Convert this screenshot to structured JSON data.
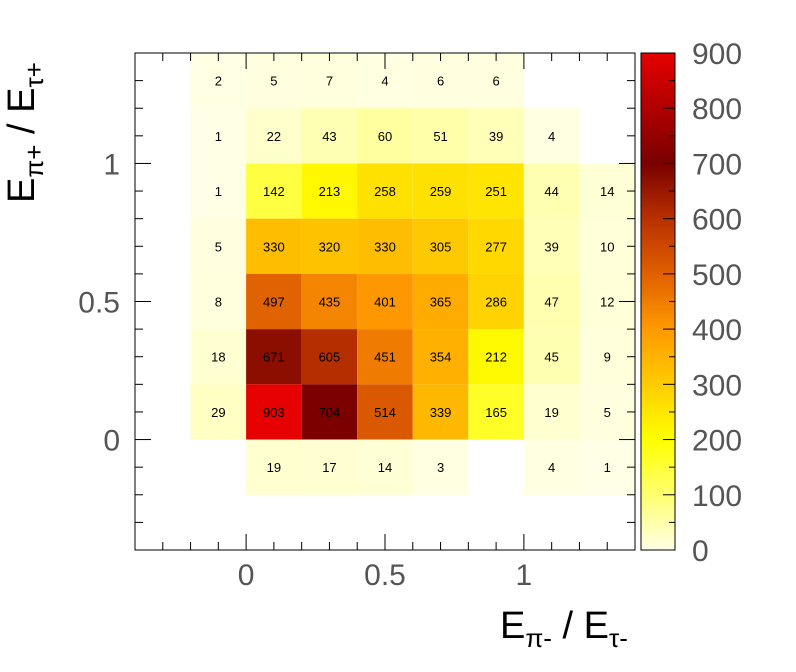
{
  "chart_data": {
    "type": "heatmap",
    "x_edges": [
      -0.2,
      0,
      0.2,
      0.4,
      0.6,
      0.8,
      1.0,
      1.2,
      1.4
    ],
    "y_edges": [
      -0.2,
      0,
      0.2,
      0.4,
      0.6,
      0.8,
      1.0,
      1.2,
      1.4
    ],
    "cells": [
      {
        "x": -0.1,
        "y": 1.3,
        "value": 2
      },
      {
        "x": 0.1,
        "y": 1.3,
        "value": 5
      },
      {
        "x": 0.3,
        "y": 1.3,
        "value": 7
      },
      {
        "x": 0.5,
        "y": 1.3,
        "value": 4
      },
      {
        "x": 0.7,
        "y": 1.3,
        "value": 6
      },
      {
        "x": 0.9,
        "y": 1.3,
        "value": 6
      },
      {
        "x": -0.1,
        "y": 1.1,
        "value": 1
      },
      {
        "x": 0.1,
        "y": 1.1,
        "value": 22
      },
      {
        "x": 0.3,
        "y": 1.1,
        "value": 43
      },
      {
        "x": 0.5,
        "y": 1.1,
        "value": 60
      },
      {
        "x": 0.7,
        "y": 1.1,
        "value": 51
      },
      {
        "x": 0.9,
        "y": 1.1,
        "value": 39
      },
      {
        "x": 1.1,
        "y": 1.1,
        "value": 4
      },
      {
        "x": -0.1,
        "y": 0.9,
        "value": 1
      },
      {
        "x": 0.1,
        "y": 0.9,
        "value": 142
      },
      {
        "x": 0.3,
        "y": 0.9,
        "value": 213
      },
      {
        "x": 0.5,
        "y": 0.9,
        "value": 258
      },
      {
        "x": 0.7,
        "y": 0.9,
        "value": 259
      },
      {
        "x": 0.9,
        "y": 0.9,
        "value": 251
      },
      {
        "x": 1.1,
        "y": 0.9,
        "value": 44
      },
      {
        "x": 1.3,
        "y": 0.9,
        "value": 14
      },
      {
        "x": -0.1,
        "y": 0.7,
        "value": 5
      },
      {
        "x": 0.1,
        "y": 0.7,
        "value": 330
      },
      {
        "x": 0.3,
        "y": 0.7,
        "value": 320
      },
      {
        "x": 0.5,
        "y": 0.7,
        "value": 330
      },
      {
        "x": 0.7,
        "y": 0.7,
        "value": 305
      },
      {
        "x": 0.9,
        "y": 0.7,
        "value": 277
      },
      {
        "x": 1.1,
        "y": 0.7,
        "value": 39
      },
      {
        "x": 1.3,
        "y": 0.7,
        "value": 10
      },
      {
        "x": -0.1,
        "y": 0.5,
        "value": 8
      },
      {
        "x": 0.1,
        "y": 0.5,
        "value": 497
      },
      {
        "x": 0.3,
        "y": 0.5,
        "value": 435
      },
      {
        "x": 0.5,
        "y": 0.5,
        "value": 401
      },
      {
        "x": 0.7,
        "y": 0.5,
        "value": 365
      },
      {
        "x": 0.9,
        "y": 0.5,
        "value": 286
      },
      {
        "x": 1.1,
        "y": 0.5,
        "value": 47
      },
      {
        "x": 1.3,
        "y": 0.5,
        "value": 12
      },
      {
        "x": -0.1,
        "y": 0.3,
        "value": 18
      },
      {
        "x": 0.1,
        "y": 0.3,
        "value": 671
      },
      {
        "x": 0.3,
        "y": 0.3,
        "value": 605
      },
      {
        "x": 0.5,
        "y": 0.3,
        "value": 451
      },
      {
        "x": 0.7,
        "y": 0.3,
        "value": 354
      },
      {
        "x": 0.9,
        "y": 0.3,
        "value": 212
      },
      {
        "x": 1.1,
        "y": 0.3,
        "value": 45
      },
      {
        "x": 1.3,
        "y": 0.3,
        "value": 9
      },
      {
        "x": -0.1,
        "y": 0.1,
        "value": 29
      },
      {
        "x": 0.1,
        "y": 0.1,
        "value": 903
      },
      {
        "x": 0.3,
        "y": 0.1,
        "value": 704
      },
      {
        "x": 0.5,
        "y": 0.1,
        "value": 514
      },
      {
        "x": 0.7,
        "y": 0.1,
        "value": 339
      },
      {
        "x": 0.9,
        "y": 0.1,
        "value": 165
      },
      {
        "x": 1.1,
        "y": 0.1,
        "value": 19
      },
      {
        "x": 1.3,
        "y": 0.1,
        "value": 5
      },
      {
        "x": 0.1,
        "y": -0.1,
        "value": 19
      },
      {
        "x": 0.3,
        "y": -0.1,
        "value": 17
      },
      {
        "x": 0.5,
        "y": -0.1,
        "value": 14
      },
      {
        "x": 0.7,
        "y": -0.1,
        "value": 3
      },
      {
        "x": 1.1,
        "y": -0.1,
        "value": 4
      },
      {
        "x": 1.3,
        "y": -0.1,
        "value": 1
      }
    ],
    "xlim": [
      -0.4,
      1.4
    ],
    "ylim": [
      -0.4,
      1.4
    ],
    "x_ticks": [
      0,
      0.5,
      1
    ],
    "x_tick_labels": [
      "0",
      "0.5",
      "1"
    ],
    "y_ticks": [
      0,
      0.5,
      1
    ],
    "y_tick_labels": [
      "0",
      "0.5",
      "1"
    ],
    "xlabel": {
      "main1": "E",
      "sub1": "π-",
      "main2": " / E",
      "sub2": "τ-"
    },
    "ylabel": {
      "main1": "E",
      "sub1": "π+",
      "main2": " / E",
      "sub2": "τ+"
    },
    "colorbar": {
      "range": [
        0,
        900
      ],
      "ticks": [
        0,
        100,
        200,
        300,
        400,
        500,
        600,
        700,
        800,
        900
      ],
      "tick_labels": [
        "0",
        "100",
        "200",
        "300",
        "400",
        "500",
        "600",
        "700",
        "800",
        "900"
      ],
      "stops": [
        "#ffffe6",
        "#ffff70",
        "#ffff00",
        "#ffcc00",
        "#ff9900",
        "#e06000",
        "#b83000",
        "#7a0000",
        "#b00000",
        "#e60000"
      ]
    },
    "grid": false,
    "legend": "none"
  }
}
